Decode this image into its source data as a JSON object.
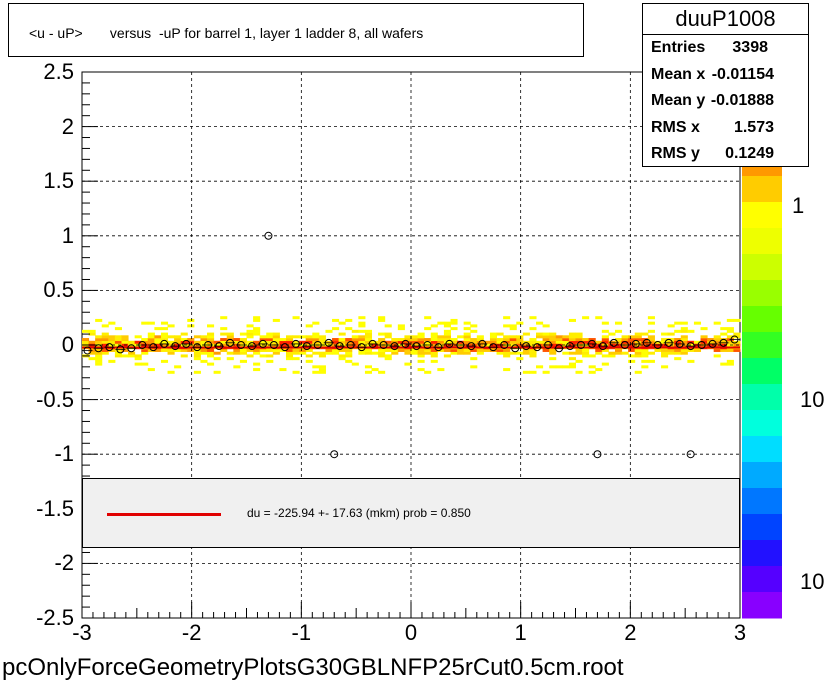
{
  "title": "<u - uP>       versus  -uP for barrel 1, layer 1 ladder 8, all wafers",
  "stats": {
    "name": "duuP1008",
    "rows": [
      {
        "key": "Entries",
        "value": "3398"
      },
      {
        "key": "Mean x",
        "value": "-0.01154"
      },
      {
        "key": "Mean y",
        "value": "-0.01888"
      },
      {
        "key": "RMS x",
        "value": "1.573"
      },
      {
        "key": "RMS y",
        "value": "0.1249"
      }
    ]
  },
  "legend": {
    "fit_label": "du = -225.94 +- 17.63 (mkm) prob = 0.850",
    "fit_color": "#e00000"
  },
  "footer": "pcOnlyForceGeometryPlotsG30GBLNFP25rCut0.5cm.root",
  "color_scale": {
    "tick_labels": [
      "1",
      "10",
      "10"
    ]
  },
  "chart_data": {
    "type": "scatter",
    "title": "<u - uP>       versus  -uP for barrel 1, layer 1 ladder 8, all wafers",
    "xlabel": "",
    "ylabel": "",
    "xlim": [
      -3,
      3
    ],
    "ylim": [
      -2.5,
      2.5
    ],
    "x_tick_labels": [
      "-3",
      "-2",
      "-1",
      "0",
      "1",
      "2",
      "3"
    ],
    "y_tick_labels": [
      "2.5",
      "2",
      "1.5",
      "1",
      "0.5",
      "0",
      "-0.5",
      "-1",
      "-1.5",
      "-2",
      "-2.5"
    ],
    "grid": true,
    "background_heatmap": {
      "description_values": "2D occupancy band concentrated near y=0 from x=-3 to 3",
      "y_spread": 0.25
    },
    "profile_points": [
      {
        "x": -2.95,
        "y": -0.05
      },
      {
        "x": -2.85,
        "y": -0.03
      },
      {
        "x": -2.75,
        "y": -0.02
      },
      {
        "x": -2.65,
        "y": -0.04
      },
      {
        "x": -2.55,
        "y": -0.03
      },
      {
        "x": -2.45,
        "y": 0.0
      },
      {
        "x": -2.35,
        "y": -0.02
      },
      {
        "x": -2.25,
        "y": 0.01
      },
      {
        "x": -2.15,
        "y": -0.01
      },
      {
        "x": -2.05,
        "y": 0.01
      },
      {
        "x": -1.95,
        "y": -0.02
      },
      {
        "x": -1.85,
        "y": 0.0
      },
      {
        "x": -1.75,
        "y": -0.01
      },
      {
        "x": -1.65,
        "y": 0.02
      },
      {
        "x": -1.55,
        "y": 0.0
      },
      {
        "x": -1.45,
        "y": -0.01
      },
      {
        "x": -1.35,
        "y": 0.01
      },
      {
        "x": -1.25,
        "y": 0.0
      },
      {
        "x": -1.15,
        "y": -0.02
      },
      {
        "x": -1.05,
        "y": 0.01
      },
      {
        "x": -0.95,
        "y": -0.01
      },
      {
        "x": -0.85,
        "y": 0.0
      },
      {
        "x": -0.75,
        "y": 0.02
      },
      {
        "x": -0.65,
        "y": -0.01
      },
      {
        "x": -0.55,
        "y": 0.0
      },
      {
        "x": -0.45,
        "y": -0.02
      },
      {
        "x": -0.35,
        "y": 0.01
      },
      {
        "x": -0.25,
        "y": 0.0
      },
      {
        "x": -0.15,
        "y": -0.01
      },
      {
        "x": -0.05,
        "y": 0.01
      },
      {
        "x": 0.05,
        "y": -0.01
      },
      {
        "x": 0.15,
        "y": 0.0
      },
      {
        "x": 0.25,
        "y": -0.02
      },
      {
        "x": 0.35,
        "y": 0.01
      },
      {
        "x": 0.45,
        "y": 0.0
      },
      {
        "x": 0.55,
        "y": -0.01
      },
      {
        "x": 0.65,
        "y": 0.01
      },
      {
        "x": 0.75,
        "y": -0.02
      },
      {
        "x": 0.85,
        "y": 0.0
      },
      {
        "x": 0.95,
        "y": -0.03
      },
      {
        "x": 1.05,
        "y": -0.01
      },
      {
        "x": 1.15,
        "y": -0.02
      },
      {
        "x": 1.25,
        "y": 0.0
      },
      {
        "x": 1.35,
        "y": -0.03
      },
      {
        "x": 1.45,
        "y": -0.01
      },
      {
        "x": 1.55,
        "y": 0.0
      },
      {
        "x": 1.65,
        "y": 0.01
      },
      {
        "x": 1.75,
        "y": -0.01
      },
      {
        "x": 1.85,
        "y": 0.02
      },
      {
        "x": 1.95,
        "y": 0.0
      },
      {
        "x": 2.05,
        "y": 0.01
      },
      {
        "x": 2.15,
        "y": 0.02
      },
      {
        "x": 2.25,
        "y": 0.0
      },
      {
        "x": 2.35,
        "y": 0.02
      },
      {
        "x": 2.45,
        "y": 0.01
      },
      {
        "x": 2.55,
        "y": -0.01
      },
      {
        "x": 2.65,
        "y": 0.0
      },
      {
        "x": 2.75,
        "y": 0.01
      },
      {
        "x": 2.85,
        "y": 0.02
      },
      {
        "x": 2.95,
        "y": 0.05
      }
    ],
    "outlier_points": [
      {
        "x": -1.3,
        "y": 1.0
      },
      {
        "x": -0.7,
        "y": -1.0
      },
      {
        "x": 1.7,
        "y": -1.0
      },
      {
        "x": 2.55,
        "y": -1.0
      }
    ],
    "fit": {
      "label": "du = -225.94 +- 17.63 (mkm) prob = 0.850",
      "y_value": -0.0226
    }
  }
}
